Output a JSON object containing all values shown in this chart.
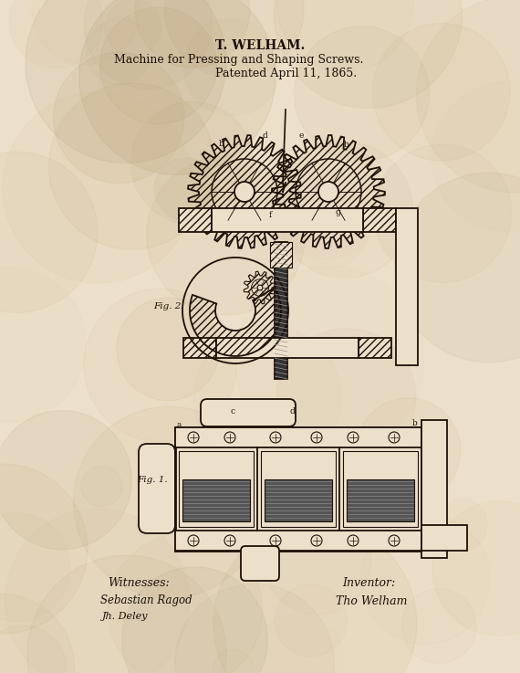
{
  "title1": "T. WELHAM.",
  "title2": "Machine for Pressing and Shaping Screws.",
  "title3": "Patented April 11, 1865.",
  "bg_color": "#ede0ca",
  "ink_color": "#1c1008",
  "fig_label1": "Fig. 1.",
  "fig_label2": "Fig. 2.",
  "witnesses_label": "Witnesses:",
  "witness1": "Sebastian Ragod",
  "witness2": "Jh. Deley",
  "inventor_label": "Inventor:",
  "inventor": "Tho Welham",
  "texture_seed": 42
}
